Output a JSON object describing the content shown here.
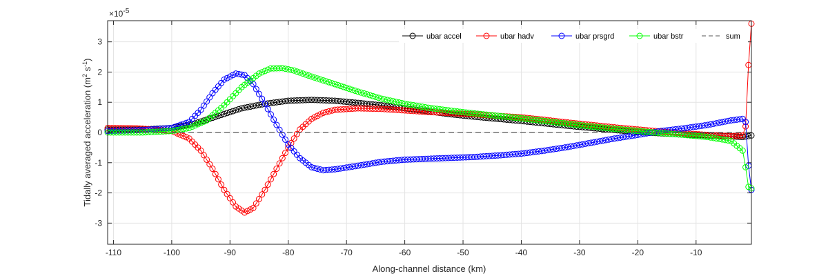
{
  "chart_data": {
    "type": "line",
    "xlabel": "Along-channel distance (km)",
    "ylabel_main": "Tidally averaged acceleration (m",
    "ylabel_sup1": "2",
    "ylabel_mid": " s",
    "ylabel_sup2": "-1",
    "ylabel_end": ")",
    "exponent_base": "×10",
    "exponent_power": "-5",
    "xlim": [
      -111,
      -0.5
    ],
    "ylim": [
      -3.7,
      3.7
    ],
    "x_ticks": [
      -110,
      -100,
      -90,
      -80,
      -70,
      -60,
      -50,
      -40,
      -30,
      -20,
      -10
    ],
    "x_tick_labels": [
      "-110",
      "-100",
      "-90",
      "-80",
      "-70",
      "-60",
      "-50",
      "-40",
      "-30",
      "-20",
      "-10"
    ],
    "y_ticks": [
      -3,
      -2,
      -1,
      0,
      1,
      2,
      3
    ],
    "y_tick_labels": [
      "-3",
      "-2",
      "-1",
      "0",
      "1",
      "2",
      "3"
    ],
    "grid": true,
    "legend_position": "top-right",
    "series": [
      {
        "name": "ubar accel",
        "color": "#000000",
        "marker": "circle",
        "points": [
          [
            -111,
            0.1
          ],
          [
            -105,
            0.1
          ],
          [
            -100,
            0.15
          ],
          [
            -96,
            0.3
          ],
          [
            -92,
            0.55
          ],
          [
            -88,
            0.8
          ],
          [
            -84,
            0.95
          ],
          [
            -80,
            1.05
          ],
          [
            -76,
            1.08
          ],
          [
            -72,
            1.05
          ],
          [
            -68,
            0.98
          ],
          [
            -64,
            0.9
          ],
          [
            -60,
            0.8
          ],
          [
            -56,
            0.7
          ],
          [
            -52,
            0.6
          ],
          [
            -48,
            0.52
          ],
          [
            -44,
            0.45
          ],
          [
            -40,
            0.38
          ],
          [
            -36,
            0.3
          ],
          [
            -32,
            0.22
          ],
          [
            -28,
            0.15
          ],
          [
            -24,
            0.08
          ],
          [
            -20,
            0.02
          ],
          [
            -16,
            -0.03
          ],
          [
            -12,
            -0.07
          ],
          [
            -8,
            -0.1
          ],
          [
            -4,
            -0.13
          ],
          [
            -2,
            -0.15
          ],
          [
            -1,
            -0.12
          ],
          [
            -0.5,
            -0.1
          ]
        ]
      },
      {
        "name": "ubar hadv",
        "color": "#ff0000",
        "marker": "circle",
        "points": [
          [
            -111,
            0.15
          ],
          [
            -106,
            0.14
          ],
          [
            -100,
            0.05
          ],
          [
            -97,
            -0.2
          ],
          [
            -95,
            -0.6
          ],
          [
            -93,
            -1.2
          ],
          [
            -91,
            -1.9
          ],
          [
            -89,
            -2.45
          ],
          [
            -87.5,
            -2.65
          ],
          [
            -86,
            -2.5
          ],
          [
            -84,
            -1.9
          ],
          [
            -82,
            -1.2
          ],
          [
            -80,
            -0.5
          ],
          [
            -78,
            0.1
          ],
          [
            -76,
            0.45
          ],
          [
            -74,
            0.65
          ],
          [
            -72,
            0.75
          ],
          [
            -68,
            0.8
          ],
          [
            -64,
            0.78
          ],
          [
            -60,
            0.73
          ],
          [
            -56,
            0.68
          ],
          [
            -52,
            0.64
          ],
          [
            -48,
            0.6
          ],
          [
            -44,
            0.55
          ],
          [
            -40,
            0.5
          ],
          [
            -36,
            0.42
          ],
          [
            -32,
            0.33
          ],
          [
            -28,
            0.25
          ],
          [
            -24,
            0.17
          ],
          [
            -20,
            0.1
          ],
          [
            -16,
            0.03
          ],
          [
            -12,
            -0.03
          ],
          [
            -8,
            -0.08
          ],
          [
            -4,
            -0.12
          ],
          [
            -2,
            -0.1
          ],
          [
            -1.5,
            0.2
          ],
          [
            -1.2,
            0.7
          ],
          [
            -0.9,
            3.0
          ],
          [
            -0.5,
            3.6
          ]
        ]
      },
      {
        "name": "ubar prsgrd",
        "color": "#0000ff",
        "marker": "circle",
        "points": [
          [
            -111,
            0.05
          ],
          [
            -105,
            0.08
          ],
          [
            -100,
            0.15
          ],
          [
            -97,
            0.35
          ],
          [
            -95,
            0.75
          ],
          [
            -93,
            1.3
          ],
          [
            -91,
            1.75
          ],
          [
            -89,
            1.95
          ],
          [
            -87.5,
            1.9
          ],
          [
            -86,
            1.6
          ],
          [
            -84,
            0.95
          ],
          [
            -82,
            0.25
          ],
          [
            -80,
            -0.4
          ],
          [
            -78,
            -0.85
          ],
          [
            -76,
            -1.15
          ],
          [
            -74,
            -1.25
          ],
          [
            -72,
            -1.22
          ],
          [
            -68,
            -1.1
          ],
          [
            -64,
            -0.97
          ],
          [
            -60,
            -0.9
          ],
          [
            -56,
            -0.87
          ],
          [
            -52,
            -0.84
          ],
          [
            -48,
            -0.81
          ],
          [
            -44,
            -0.76
          ],
          [
            -40,
            -0.7
          ],
          [
            -36,
            -0.6
          ],
          [
            -32,
            -0.48
          ],
          [
            -28,
            -0.34
          ],
          [
            -24,
            -0.2
          ],
          [
            -20,
            -0.08
          ],
          [
            -16,
            0.05
          ],
          [
            -12,
            0.14
          ],
          [
            -8,
            0.25
          ],
          [
            -4,
            0.4
          ],
          [
            -2,
            0.45
          ],
          [
            -1.5,
            0.35
          ],
          [
            -1.2,
            0.3
          ],
          [
            -0.9,
            -1.8
          ],
          [
            -0.5,
            -1.9
          ]
        ]
      },
      {
        "name": "ubar bstr",
        "color": "#00ff00",
        "marker": "circle",
        "points": [
          [
            -111,
            0.0
          ],
          [
            -105,
            0.0
          ],
          [
            -100,
            0.05
          ],
          [
            -97,
            0.15
          ],
          [
            -94,
            0.4
          ],
          [
            -91,
            0.9
          ],
          [
            -88,
            1.5
          ],
          [
            -85,
            1.95
          ],
          [
            -83,
            2.12
          ],
          [
            -81,
            2.13
          ],
          [
            -79,
            2.05
          ],
          [
            -76,
            1.85
          ],
          [
            -72,
            1.6
          ],
          [
            -68,
            1.35
          ],
          [
            -64,
            1.12
          ],
          [
            -60,
            0.95
          ],
          [
            -56,
            0.82
          ],
          [
            -52,
            0.72
          ],
          [
            -48,
            0.63
          ],
          [
            -44,
            0.55
          ],
          [
            -40,
            0.47
          ],
          [
            -36,
            0.38
          ],
          [
            -32,
            0.29
          ],
          [
            -28,
            0.2
          ],
          [
            -24,
            0.12
          ],
          [
            -20,
            0.05
          ],
          [
            -16,
            -0.02
          ],
          [
            -12,
            -0.08
          ],
          [
            -8,
            -0.15
          ],
          [
            -4,
            -0.28
          ],
          [
            -2,
            -0.6
          ],
          [
            -1.5,
            -1.15
          ],
          [
            -1.0,
            -1.8
          ],
          [
            -0.5,
            -1.85
          ]
        ]
      },
      {
        "name": "sum",
        "color": "#555555",
        "marker": "none",
        "dashed": true,
        "points": [
          [
            -111,
            0
          ],
          [
            -0.5,
            0
          ]
        ]
      }
    ]
  }
}
